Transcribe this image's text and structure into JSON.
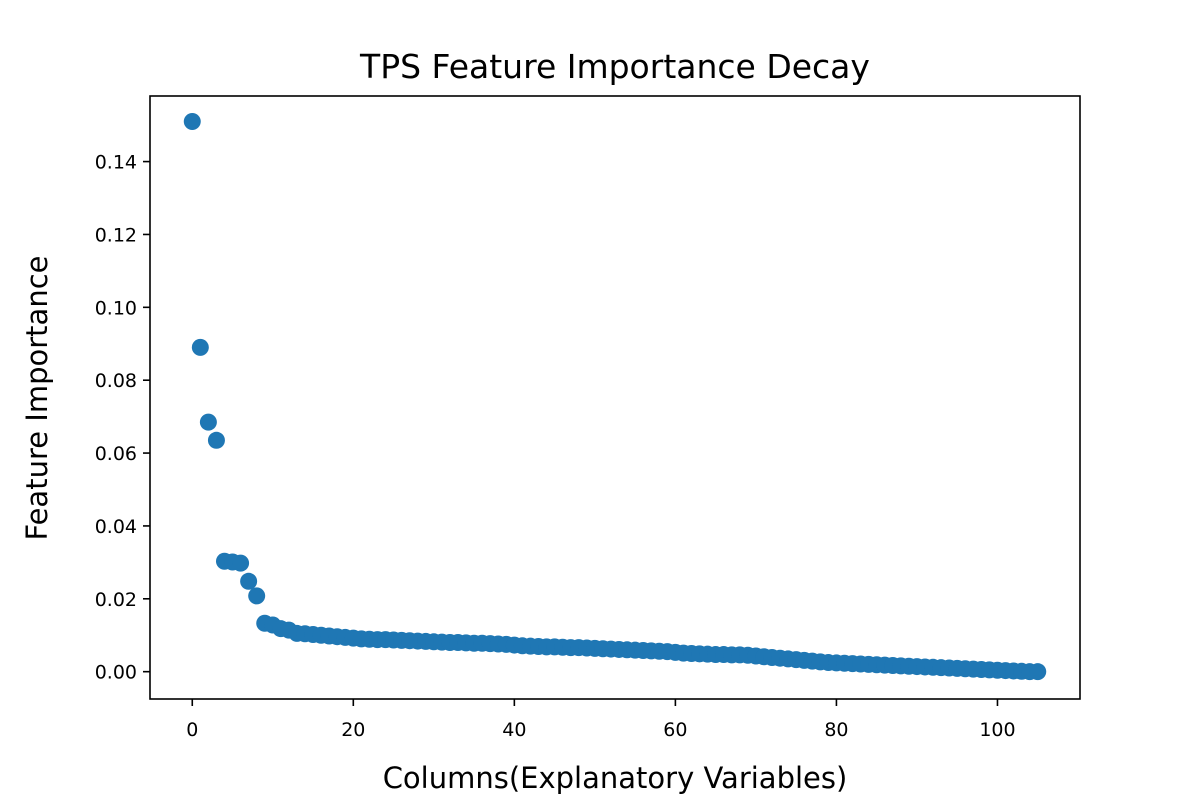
{
  "chart_data": {
    "type": "scatter",
    "title": "TPS Feature Importance Decay",
    "xlabel": "Columns(Explanatory Variables)",
    "ylabel": "Feature Importance",
    "xlim": [
      -5.25,
      110.25
    ],
    "ylim": [
      -0.0075,
      0.158
    ],
    "xticks": [
      0,
      20,
      40,
      60,
      80,
      100
    ],
    "xtick_labels": [
      "0",
      "20",
      "40",
      "60",
      "80",
      "100"
    ],
    "yticks": [
      0.0,
      0.02,
      0.04,
      0.06,
      0.08,
      0.1,
      0.12,
      0.14
    ],
    "ytick_labels": [
      "0.00",
      "0.02",
      "0.04",
      "0.06",
      "0.08",
      "0.10",
      "0.12",
      "0.14"
    ],
    "grid": false,
    "legend": "none",
    "marker_color": "#1f77b4",
    "series": [
      {
        "x": [
          0,
          1,
          2,
          3,
          4,
          5,
          6,
          7,
          8,
          9,
          10,
          11,
          12,
          13,
          14,
          15,
          16,
          17,
          18,
          19,
          20,
          21,
          22,
          23,
          24,
          25,
          26,
          27,
          28,
          29,
          30,
          31,
          32,
          33,
          34,
          35,
          36,
          37,
          38,
          39,
          40,
          41,
          42,
          43,
          44,
          45,
          46,
          47,
          48,
          49,
          50,
          51,
          52,
          53,
          54,
          55,
          56,
          57,
          58,
          59,
          60,
          61,
          62,
          63,
          64,
          65,
          66,
          67,
          68,
          69,
          70,
          71,
          72,
          73,
          74,
          75,
          76,
          77,
          78,
          79,
          80,
          81,
          82,
          83,
          84,
          85,
          86,
          87,
          88,
          89,
          90,
          91,
          92,
          93,
          94,
          95,
          96,
          97,
          98,
          99,
          100,
          101,
          102,
          103,
          104,
          105
        ],
        "y": [
          0.151,
          0.089,
          0.0685,
          0.0635,
          0.0303,
          0.0301,
          0.0298,
          0.0248,
          0.0208,
          0.0133,
          0.0128,
          0.0118,
          0.0114,
          0.0105,
          0.0104,
          0.0102,
          0.01,
          0.0098,
          0.0096,
          0.0094,
          0.0092,
          0.009,
          0.0089,
          0.0088,
          0.0088,
          0.0087,
          0.0086,
          0.0085,
          0.0084,
          0.0083,
          0.0082,
          0.0081,
          0.008,
          0.008,
          0.0079,
          0.0078,
          0.0078,
          0.0077,
          0.0076,
          0.0075,
          0.0073,
          0.0071,
          0.007,
          0.0069,
          0.0068,
          0.0068,
          0.0067,
          0.0066,
          0.0066,
          0.0065,
          0.0064,
          0.0063,
          0.0062,
          0.0061,
          0.006,
          0.0059,
          0.0058,
          0.0057,
          0.0056,
          0.0055,
          0.0053,
          0.0051,
          0.005,
          0.0049,
          0.0048,
          0.0047,
          0.0047,
          0.0046,
          0.0046,
          0.0045,
          0.0043,
          0.0041,
          0.0039,
          0.0037,
          0.0035,
          0.0033,
          0.0031,
          0.0029,
          0.0027,
          0.0025,
          0.0024,
          0.0023,
          0.0022,
          0.0021,
          0.002,
          0.0019,
          0.0018,
          0.0017,
          0.0016,
          0.0015,
          0.0014,
          0.0013,
          0.0012,
          0.0011,
          0.001,
          0.0009,
          0.0008,
          0.0007,
          0.0006,
          0.0005,
          0.0004,
          0.0003,
          0.0002,
          0.0001,
          0.0,
          0.0
        ]
      }
    ]
  }
}
